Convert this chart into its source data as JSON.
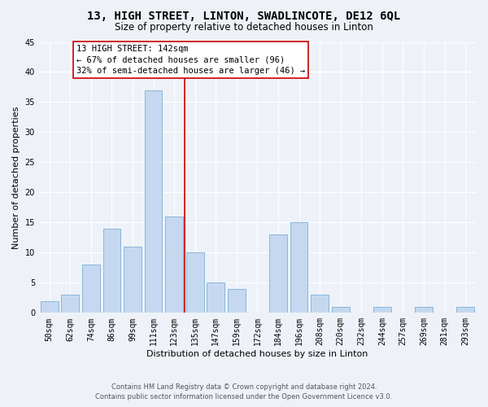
{
  "title": "13, HIGH STREET, LINTON, SWADLINCOTE, DE12 6QL",
  "subtitle": "Size of property relative to detached houses in Linton",
  "xlabel": "Distribution of detached houses by size in Linton",
  "ylabel": "Number of detached properties",
  "bar_color": "#c5d8f0",
  "bar_edge_color": "#7aafd4",
  "background_color": "#eef2f8",
  "grid_color": "#ffffff",
  "categories": [
    "50sqm",
    "62sqm",
    "74sqm",
    "86sqm",
    "99sqm",
    "111sqm",
    "123sqm",
    "135sqm",
    "147sqm",
    "159sqm",
    "172sqm",
    "184sqm",
    "196sqm",
    "208sqm",
    "220sqm",
    "232sqm",
    "244sqm",
    "257sqm",
    "269sqm",
    "281sqm",
    "293sqm"
  ],
  "values": [
    2,
    3,
    8,
    14,
    11,
    37,
    16,
    10,
    5,
    4,
    0,
    13,
    15,
    3,
    1,
    0,
    1,
    0,
    1,
    0,
    1
  ],
  "ylim": [
    0,
    45
  ],
  "yticks": [
    0,
    5,
    10,
    15,
    20,
    25,
    30,
    35,
    40,
    45
  ],
  "property_line_x": 6.5,
  "annotation_text": "13 HIGH STREET: 142sqm\n← 67% of detached houses are smaller (96)\n32% of semi-detached houses are larger (46) →",
  "footer_line1": "Contains HM Land Registry data © Crown copyright and database right 2024.",
  "footer_line2": "Contains public sector information licensed under the Open Government Licence v3.0.",
  "annotation_box_color": "#ffffff",
  "annotation_box_edge_color": "#cc0000",
  "property_line_color": "#cc0000",
  "title_fontsize": 10,
  "subtitle_fontsize": 8.5,
  "ylabel_fontsize": 8,
  "xlabel_fontsize": 8,
  "tick_fontsize": 7,
  "annotation_fontsize": 7.5,
  "footer_fontsize": 6
}
